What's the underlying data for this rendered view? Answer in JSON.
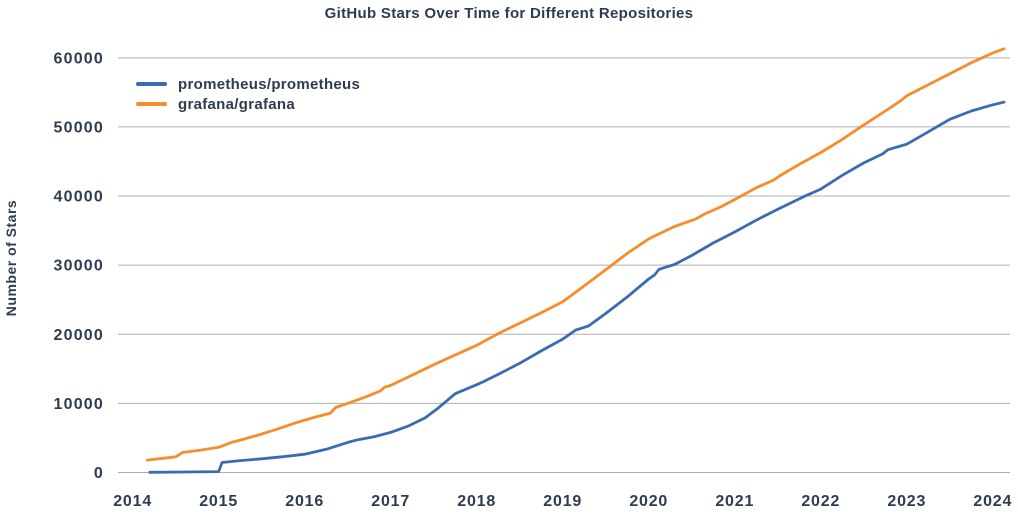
{
  "chart_data": {
    "type": "line",
    "title": "GitHub Stars Over Time for Different Repositories",
    "xlabel": "",
    "ylabel": "Number of Stars",
    "xlim": [
      2013.83,
      2024.2
    ],
    "ylim": [
      0,
      62000
    ],
    "grid": "horizontal",
    "legend_position": "upper-left",
    "text_color": "#2E3C52",
    "grid_color": "#AFAFAF",
    "xticks": {
      "values": [
        2014,
        2015,
        2016,
        2017,
        2018,
        2019,
        2020,
        2021,
        2022,
        2023,
        2024
      ],
      "labels": [
        "2014",
        "2015",
        "2016",
        "2017",
        "2018",
        "2019",
        "2020",
        "2021",
        "2022",
        "2023",
        "2024"
      ]
    },
    "yticks": {
      "values": [
        0,
        10000,
        20000,
        30000,
        40000,
        50000,
        60000
      ],
      "labels": [
        "0",
        "10000",
        "20000",
        "30000",
        "40000",
        "50000",
        "60000"
      ]
    },
    "series": [
      {
        "name": "prometheus/prometheus",
        "color": "#3A6CB4",
        "points": [
          [
            2014.2,
            30
          ],
          [
            2014.6,
            70
          ],
          [
            2015.0,
            130
          ],
          [
            2015.04,
            1450
          ],
          [
            2015.25,
            1720
          ],
          [
            2015.5,
            1980
          ],
          [
            2015.75,
            2280
          ],
          [
            2016.0,
            2650
          ],
          [
            2016.25,
            3350
          ],
          [
            2016.5,
            4350
          ],
          [
            2016.62,
            4750
          ],
          [
            2016.8,
            5150
          ],
          [
            2017.0,
            5800
          ],
          [
            2017.2,
            6700
          ],
          [
            2017.4,
            7900
          ],
          [
            2017.55,
            9300
          ],
          [
            2017.75,
            11400
          ],
          [
            2018.0,
            12700
          ],
          [
            2018.07,
            13100
          ],
          [
            2018.25,
            14200
          ],
          [
            2018.5,
            15800
          ],
          [
            2018.75,
            17600
          ],
          [
            2019.0,
            19300
          ],
          [
            2019.08,
            20000
          ],
          [
            2019.15,
            20600
          ],
          [
            2019.3,
            21200
          ],
          [
            2019.5,
            23000
          ],
          [
            2019.75,
            25400
          ],
          [
            2020.0,
            28000
          ],
          [
            2020.07,
            28600
          ],
          [
            2020.12,
            29400
          ],
          [
            2020.3,
            30100
          ],
          [
            2020.5,
            31400
          ],
          [
            2020.75,
            33200
          ],
          [
            2021.0,
            34800
          ],
          [
            2021.25,
            36500
          ],
          [
            2021.5,
            38100
          ],
          [
            2021.8,
            39900
          ],
          [
            2022.0,
            41000
          ],
          [
            2022.25,
            43000
          ],
          [
            2022.5,
            44800
          ],
          [
            2022.72,
            46100
          ],
          [
            2022.78,
            46700
          ],
          [
            2023.0,
            47500
          ],
          [
            2023.25,
            49300
          ],
          [
            2023.5,
            51100
          ],
          [
            2023.75,
            52300
          ],
          [
            2024.0,
            53200
          ],
          [
            2024.13,
            53600
          ]
        ]
      },
      {
        "name": "grafana/grafana",
        "color": "#F78C2A",
        "points": [
          [
            2014.17,
            1800
          ],
          [
            2014.35,
            2050
          ],
          [
            2014.5,
            2250
          ],
          [
            2014.58,
            2900
          ],
          [
            2014.8,
            3250
          ],
          [
            2015.0,
            3650
          ],
          [
            2015.15,
            4350
          ],
          [
            2015.3,
            4850
          ],
          [
            2015.5,
            5550
          ],
          [
            2015.7,
            6350
          ],
          [
            2015.9,
            7200
          ],
          [
            2016.1,
            7950
          ],
          [
            2016.3,
            8600
          ],
          [
            2016.36,
            9400
          ],
          [
            2016.5,
            10000
          ],
          [
            2016.7,
            10900
          ],
          [
            2016.88,
            11800
          ],
          [
            2016.93,
            12350
          ],
          [
            2017.0,
            12600
          ],
          [
            2017.25,
            14100
          ],
          [
            2017.5,
            15600
          ],
          [
            2017.75,
            17000
          ],
          [
            2018.0,
            18400
          ],
          [
            2018.25,
            20100
          ],
          [
            2018.5,
            21600
          ],
          [
            2018.75,
            23100
          ],
          [
            2019.0,
            24700
          ],
          [
            2019.25,
            27000
          ],
          [
            2019.57,
            30000
          ],
          [
            2019.75,
            31700
          ],
          [
            2020.0,
            33800
          ],
          [
            2020.3,
            35600
          ],
          [
            2020.55,
            36700
          ],
          [
            2020.65,
            37400
          ],
          [
            2020.85,
            38500
          ],
          [
            2021.0,
            39500
          ],
          [
            2021.25,
            41200
          ],
          [
            2021.45,
            42300
          ],
          [
            2021.52,
            42900
          ],
          [
            2021.75,
            44600
          ],
          [
            2022.0,
            46300
          ],
          [
            2022.25,
            48200
          ],
          [
            2022.5,
            50300
          ],
          [
            2022.75,
            52300
          ],
          [
            2022.93,
            53800
          ],
          [
            2023.0,
            54500
          ],
          [
            2023.25,
            56100
          ],
          [
            2023.5,
            57700
          ],
          [
            2023.75,
            59300
          ],
          [
            2024.0,
            60700
          ],
          [
            2024.13,
            61300
          ]
        ]
      }
    ]
  }
}
